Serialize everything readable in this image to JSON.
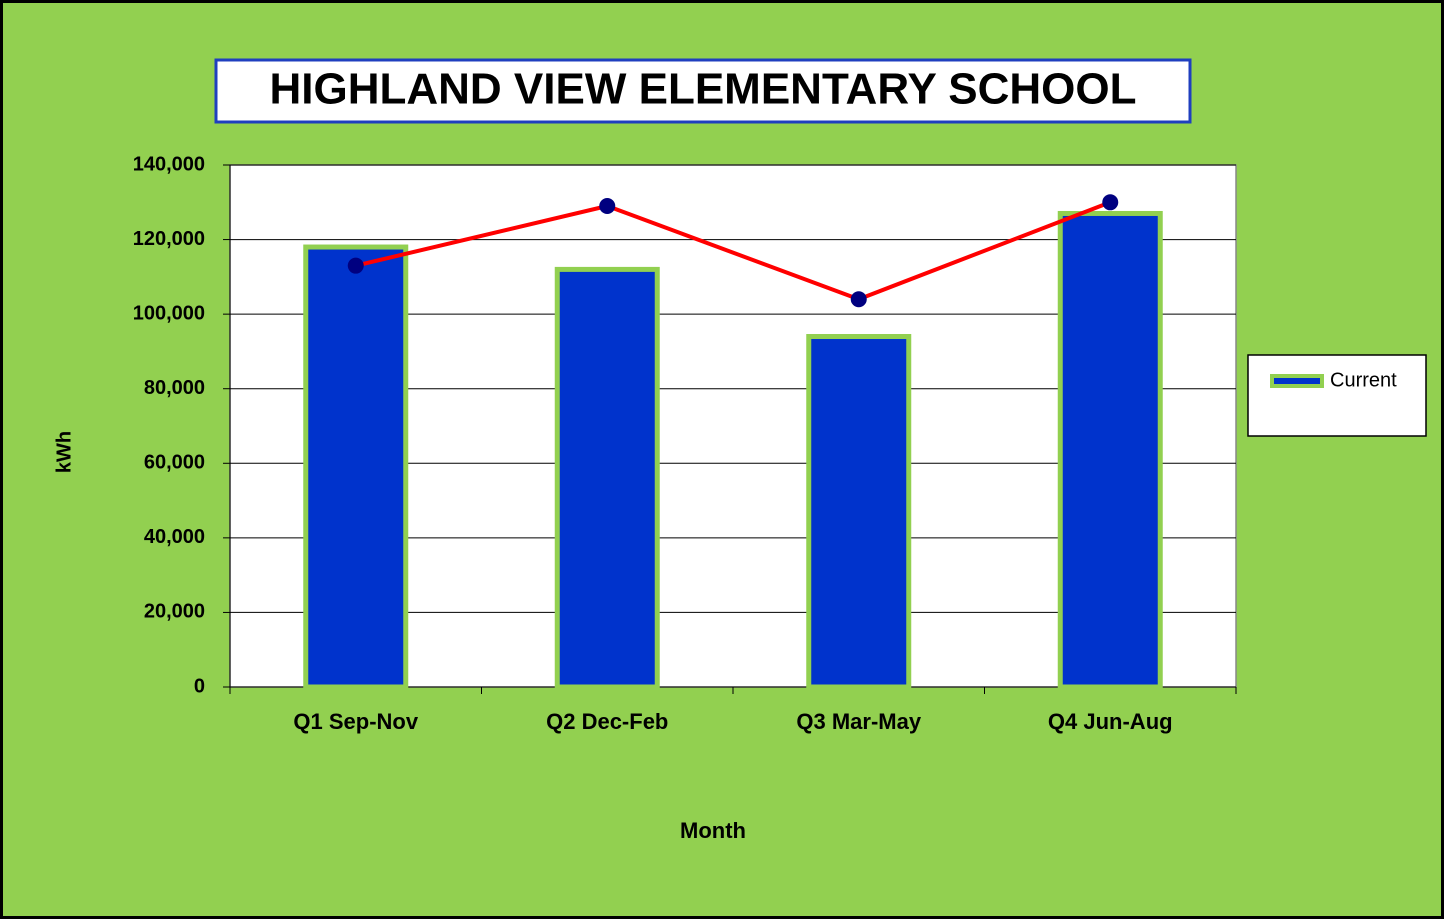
{
  "chart_data": {
    "type": "bar",
    "title": "HIGHLAND VIEW ELEMENTARY SCHOOL",
    "xlabel": "Month",
    "ylabel": "kWh",
    "categories": [
      "Q1 Sep-Nov",
      "Q2 Dec-Feb",
      "Q3 Mar-May",
      "Q4 Jun-Aug"
    ],
    "series": [
      {
        "name": "Current",
        "type": "bar",
        "color": "#0033cc",
        "edge_color": "#92d050",
        "values": [
          118000,
          112000,
          94000,
          127000
        ]
      },
      {
        "type": "line",
        "color": "#ff0000",
        "marker_color": "#000080",
        "values": [
          113000,
          129000,
          104000,
          130000
        ]
      }
    ],
    "ylim": [
      0,
      140000
    ],
    "yticks": [
      0,
      {
        "value": 20000,
        "label": "20,000"
      },
      {
        "value": 40000,
        "label": "40,000"
      },
      {
        "value": 60000,
        "label": "60,000"
      },
      {
        "value": 80000,
        "label": "80,000"
      },
      {
        "value": 100000,
        "label": "100,000"
      },
      {
        "value": 120000,
        "label": "120,000"
      },
      {
        "value": 140000,
        "label": "140,000"
      }
    ],
    "grid": true,
    "legend": "right"
  }
}
